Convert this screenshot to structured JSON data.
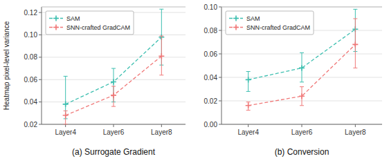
{
  "chart_data": [
    {
      "type": "line",
      "title": "(a) Surrogate Gradient",
      "y_label": "Heatmap pixel-level variance",
      "categories": [
        "Layer4",
        "Layer6",
        "Layer8"
      ],
      "series": [
        {
          "name": "SAM",
          "color": "#3dbfb0",
          "marker": "plus",
          "line_style": "dashed",
          "values": [
            0.038,
            0.058,
            0.098
          ],
          "yerr_lo": [
            0.013,
            0.018,
            0.025
          ],
          "yerr_hi": [
            0.025,
            0.012,
            0.025
          ]
        },
        {
          "name": "SNN-crafted GradCAM",
          "color": "#f07878",
          "marker": "plus",
          "line_style": "dashed",
          "values": [
            0.028,
            0.046,
            0.081
          ],
          "yerr_lo": [
            0.008,
            0.01,
            0.017
          ],
          "yerr_hi": [
            0.004,
            0.008,
            0.018
          ]
        }
      ],
      "ylim": [
        0.02,
        0.125
      ],
      "yticks": [
        0.02,
        0.04,
        0.06,
        0.08,
        {
          "value": 0.1,
          "label": "0.10"
        },
        0.12
      ],
      "grid": true,
      "legend": "upper left"
    },
    {
      "type": "line",
      "title": "(b) Conversion",
      "categories": [
        "Layer4",
        "Layer6",
        "Layer8"
      ],
      "series": [
        {
          "name": "SAM",
          "color": "#3dbfb0",
          "marker": "plus",
          "line_style": "dashed",
          "values": [
            0.038,
            0.048,
            0.081
          ],
          "yerr_lo": [
            0.01,
            0.012,
            0.019
          ],
          "yerr_hi": [
            0.007,
            0.013,
            0.017
          ]
        },
        {
          "name": "SNN-crafted GradCAM",
          "color": "#f07878",
          "marker": "plus",
          "line_style": "dashed",
          "values": [
            0.016,
            0.024,
            0.068
          ],
          "yerr_lo": [
            0.004,
            0.008,
            0.02
          ],
          "yerr_hi": [
            0.003,
            0.008,
            0.022
          ]
        }
      ],
      "ylim": [
        0.0,
        0.1
      ],
      "yticks": [
        {
          "value": 0,
          "label": "0.00"
        },
        0.02,
        0.04,
        0.06,
        0.08,
        {
          "value": 0.1,
          "label": "0.10"
        }
      ],
      "grid": true,
      "legend": "upper left"
    }
  ]
}
